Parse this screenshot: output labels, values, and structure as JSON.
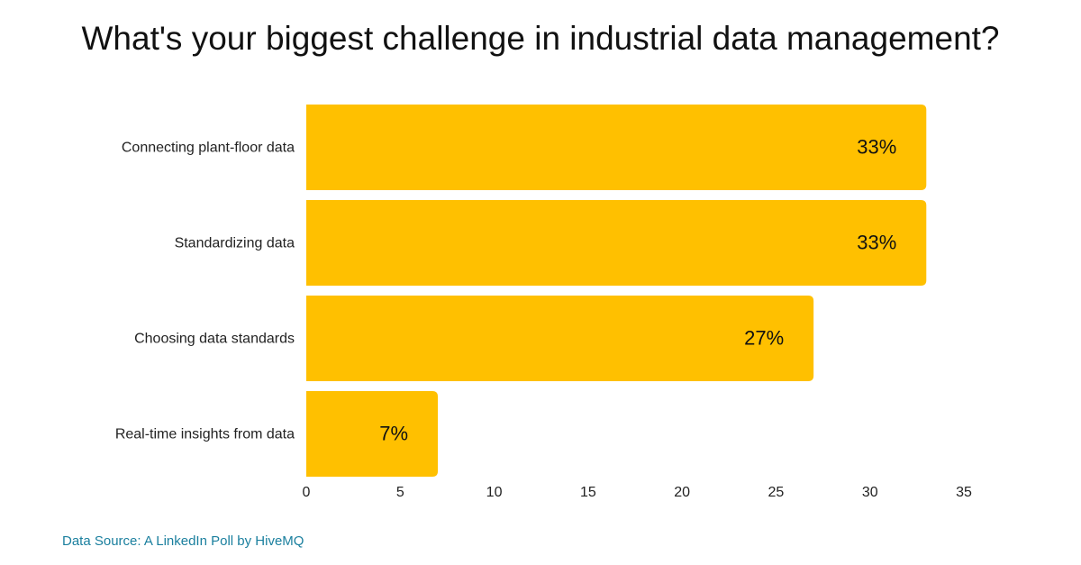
{
  "chart_data": {
    "type": "bar",
    "orientation": "horizontal",
    "title": "What's your biggest challenge in industrial data management?",
    "categories": [
      "Connecting plant-floor data",
      "Standardizing data",
      "Choosing data standards",
      "Real-time insights from data"
    ],
    "values": [
      33,
      33,
      27,
      7
    ],
    "value_labels": [
      "33%",
      "33%",
      "27%",
      "7%"
    ],
    "xlabel": "",
    "ylabel": "",
    "xlim": [
      0,
      35
    ],
    "xticks": [
      0,
      5,
      10,
      15,
      20,
      25,
      30,
      35
    ],
    "grid": false,
    "bar_color": "#FFC000",
    "source": "Data Source: A LinkedIn Poll by HiveMQ"
  },
  "colors": {
    "bar": "#FFC000",
    "source_text": "#1a7f9e",
    "text": "#111111"
  }
}
